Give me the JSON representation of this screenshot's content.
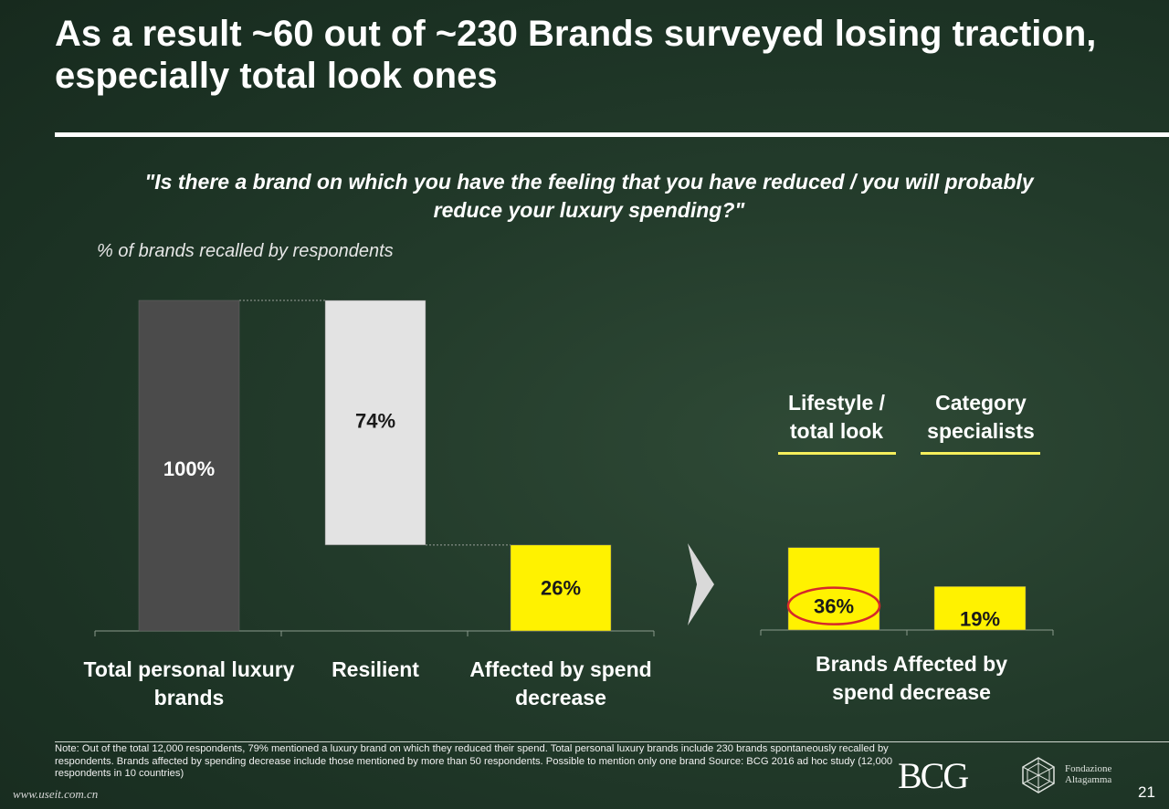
{
  "title": "As a result ~60 out of ~230 Brands surveyed losing traction, especially total look ones",
  "question": "\"Is there a brand on which you have the feeling that you have reduced / you will probably reduce your luxury spending?\"",
  "unit_label": "% of brands recalled by respondents",
  "chart_data": [
    {
      "type": "bar",
      "subtype": "waterfall",
      "categories": [
        "Total personal luxury brands",
        "Resilient",
        "Affected by spend decrease"
      ],
      "values": [
        100,
        74,
        26
      ],
      "data_labels": [
        "100%",
        "74%",
        "26%"
      ],
      "ylim": [
        0,
        100
      ],
      "colors": {
        "total": "#4b4b4b",
        "resilient": "#e3e3e3",
        "affected": "#fff200"
      }
    },
    {
      "type": "bar",
      "title": "Brands Affected by spend decrease",
      "categories": [
        "Lifestyle / total look",
        "Category specialists"
      ],
      "values": [
        36,
        19
      ],
      "data_labels": [
        "36%",
        "19%"
      ],
      "ylim": [
        0,
        100
      ],
      "highlight": "36%",
      "colors": {
        "bar": "#fff200",
        "highlight_circle": "#d6282a"
      }
    }
  ],
  "labels": {
    "cat1": "Total personal luxury brands",
    "cat2": "Resilient",
    "cat3": "Affected by spend decrease",
    "seg1": "Lifestyle / total look",
    "seg2": "Category specialists",
    "group": "Brands Affected by spend decrease"
  },
  "note": "Note: Out of the total 12,000 respondents, 79% mentioned a luxury brand on which they reduced their spend. Total personal luxury brands include 230 brands spontaneously recalled by respondents. Brands affected by spending decrease include those mentioned by more than 50 respondents. Possible to mention only one brand     Source: BCG 2016 ad hoc study (12,000 respondents in 10 countries)",
  "logo": "BCG",
  "foundation": "Fondazione Altagamma",
  "watermark": "www.useit.com.cn",
  "page_number": "21",
  "icons": [
    "chevron-right-icon",
    "foundation-logo-icon"
  ]
}
